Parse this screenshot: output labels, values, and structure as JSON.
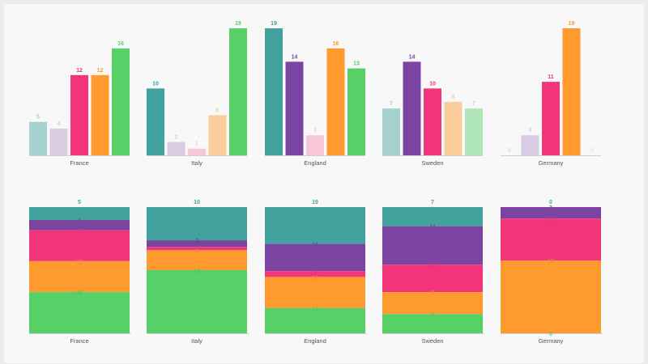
{
  "chart_data": [
    {
      "type": "bar",
      "categories": [
        "France",
        "Italy",
        "England",
        "Sweden",
        "Germany"
      ],
      "series": [
        {
          "values": [
            5,
            10,
            19,
            7,
            0
          ],
          "color": "#41a29e"
        },
        {
          "values": [
            4,
            2,
            14,
            14,
            3
          ],
          "color": "#7b44a1"
        },
        {
          "values": [
            12,
            1,
            3,
            10,
            11
          ],
          "color": "#f2347b"
        },
        {
          "values": [
            12,
            6,
            16,
            8,
            19
          ],
          "color": "#ff9a2f"
        },
        {
          "values": [
            16,
            19,
            13,
            7,
            0
          ],
          "color": "#58d068"
        }
      ],
      "ylim": [
        0,
        19
      ],
      "grid": false
    },
    {
      "type": "bar",
      "stacked": true,
      "normalized": true,
      "categories": [
        "France",
        "Italy",
        "England",
        "Sweden",
        "Germany"
      ],
      "series": [
        {
          "values": [
            5,
            10,
            19,
            7,
            0
          ],
          "color": "#41a29e"
        },
        {
          "values": [
            4,
            2,
            14,
            14,
            3
          ],
          "color": "#7b44a1"
        },
        {
          "values": [
            12,
            1,
            3,
            10,
            11
          ],
          "color": "#f2347b"
        },
        {
          "values": [
            12,
            6,
            16,
            8,
            19
          ],
          "color": "#ff9a2f"
        },
        {
          "values": [
            16,
            19,
            13,
            7,
            0
          ],
          "color": "#58d068"
        }
      ],
      "ylim": [
        0,
        1
      ],
      "grid": false
    }
  ]
}
